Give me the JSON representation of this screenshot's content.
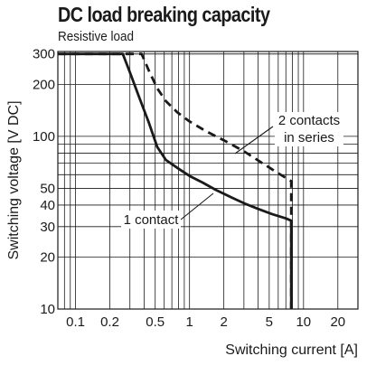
{
  "chart_data": {
    "type": "line",
    "title": "DC load breaking capacity",
    "subtitle": "Resistive load",
    "xlabel": "Switching current [A]",
    "ylabel": "Switching voltage [V DC]",
    "xscale": "log",
    "yscale": "log",
    "xlim": [
      0.07,
      30
    ],
    "ylim": [
      10,
      310
    ],
    "grid": true,
    "x_ticks": [
      "0.1",
      "0.2",
      "0.5",
      "1",
      "2",
      "5",
      "10",
      "20"
    ],
    "y_ticks": [
      "10",
      "20",
      "30",
      "40",
      "50",
      "100",
      "200",
      "300"
    ],
    "series": [
      {
        "name": "1 contact",
        "style": "solid",
        "x": [
          0.07,
          0.26,
          0.3,
          0.36,
          0.44,
          0.52,
          0.62,
          0.8,
          1.0,
          1.3,
          1.7,
          2.3,
          3.0,
          4.0,
          5.3,
          7.0,
          7.8,
          7.8
        ],
        "y": [
          300,
          300,
          235,
          170,
          120,
          87,
          73,
          65,
          59,
          54,
          49,
          44.5,
          41,
          38,
          35.5,
          33.5,
          32.5,
          10
        ]
      },
      {
        "name": "2 contacts in series",
        "style": "dashed",
        "x": [
          0.07,
          0.38,
          0.44,
          0.52,
          0.62,
          0.78,
          1.0,
          1.4,
          2.0,
          3.0,
          4.2,
          5.8,
          7.8,
          7.8
        ],
        "y": [
          300,
          300,
          240,
          190,
          160,
          138,
          122,
          107,
          95,
          82,
          71,
          62,
          55,
          10
        ]
      }
    ],
    "annotations": [
      {
        "lines": [
          "2 contacts",
          "in series"
        ],
        "series": "2 contacts in series"
      },
      {
        "lines": [
          "1 contact"
        ],
        "series": "1 contact"
      }
    ],
    "colors": {
      "line": "#1a1a1a",
      "grid": "#1a1a1a",
      "background": "#ffffff"
    }
  }
}
